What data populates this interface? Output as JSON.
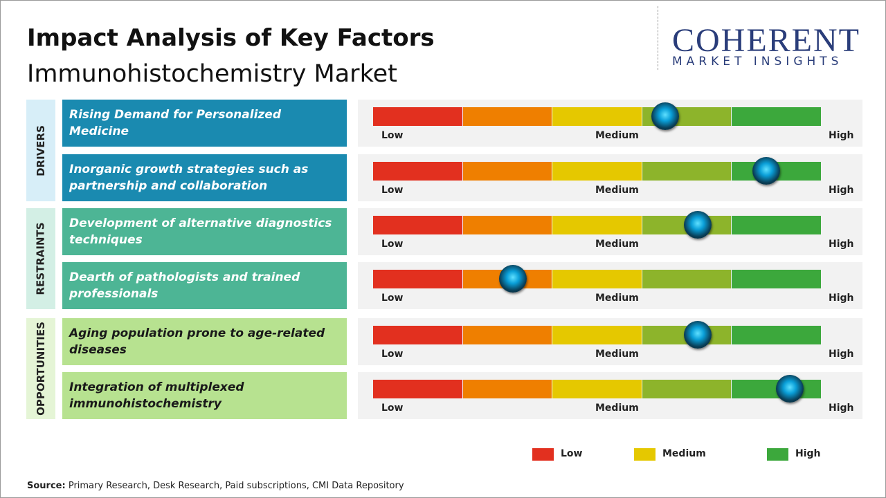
{
  "header": {
    "title": "Impact Analysis of Key Factors",
    "subtitle": "Immunohistochemistry Market"
  },
  "logo": {
    "name": "COHERENT",
    "tagline": "MARKET INSIGHTS"
  },
  "groups": [
    {
      "label": "DRIVERS",
      "factors": [
        "Rising Demand for Personalized Medicine",
        "Inorganic growth strategies such as partnership and collaboration"
      ]
    },
    {
      "label": "RESTRAINTS",
      "factors": [
        "Development of alternative diagnostics techniques",
        "Dearth of pathologists and trained professionals"
      ]
    },
    {
      "label": "OPPORTUNITIES",
      "factors": [
        "Aging population prone to age-related diseases",
        "Integration of multiplexed immunohistochemistry"
      ]
    }
  ],
  "scale": {
    "low": "Low",
    "medium": "Medium",
    "high": "High"
  },
  "legend": [
    "Low",
    "Medium",
    "High"
  ],
  "source": {
    "label": "Source:",
    "text": "Primary Research, Desk Research, Paid subscriptions, CMI Data Repository"
  }
}
